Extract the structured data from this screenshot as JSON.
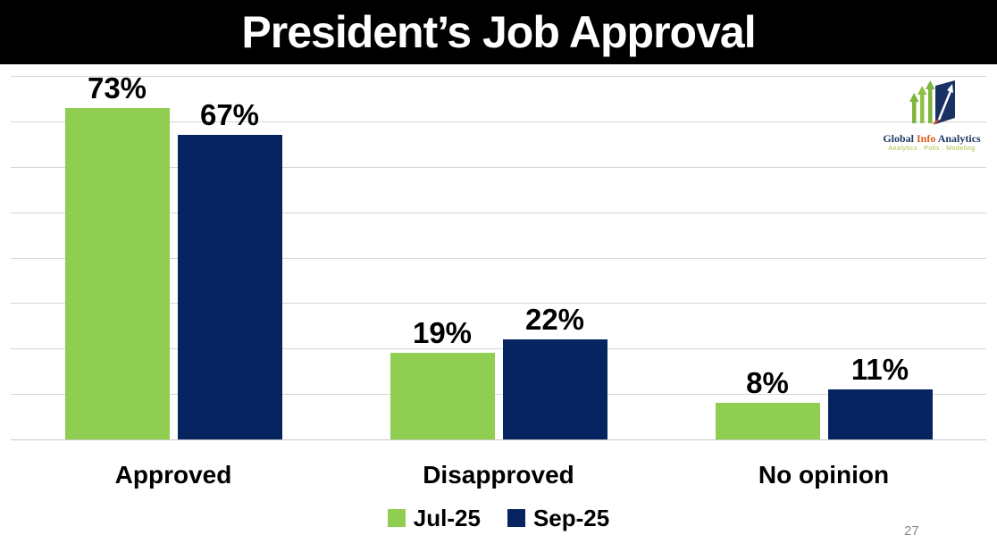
{
  "header": {
    "title": "President’s Job Approval"
  },
  "logo": {
    "name": {
      "global": "Global",
      "info": "Info",
      "analytics": "Analytics"
    },
    "tagline": "Analytics . Polls . Modeling"
  },
  "chart_data": {
    "type": "bar",
    "title": "President’s Job Approval",
    "categories": [
      "Approved",
      "Disapproved",
      "No opinion"
    ],
    "series": [
      {
        "name": "Jul-25",
        "color": "#90ce51",
        "values": [
          73,
          19,
          8
        ]
      },
      {
        "name": "Sep-25",
        "color": "#062460",
        "values": [
          67,
          22,
          11
        ]
      }
    ],
    "value_suffix": "%",
    "data_labels": {
      "Jul-25": [
        "73%",
        "19%",
        "8%"
      ],
      "Sep-25": [
        "67%",
        "22%",
        "11%"
      ]
    },
    "xlabel": "",
    "ylabel": "",
    "ylim": [
      0,
      80
    ],
    "gridline_step": 10,
    "grid": true,
    "y_axis_labels_shown": false,
    "legend_position": "bottom"
  },
  "footer": {
    "page_number": "27"
  },
  "colors": {
    "title_band_bg": "#000000",
    "title_text": "#ffffff",
    "series_jul": "#90ce51",
    "series_sep": "#062460",
    "gridline": "#d6d6d6",
    "label_text": "#000000",
    "page_number_text": "#8a8a8a",
    "logo_navy": "#1f3864",
    "logo_orange": "#e05a1e",
    "logo_green": "#7fb43e",
    "logo_tagline_green": "#a3bf3b"
  }
}
